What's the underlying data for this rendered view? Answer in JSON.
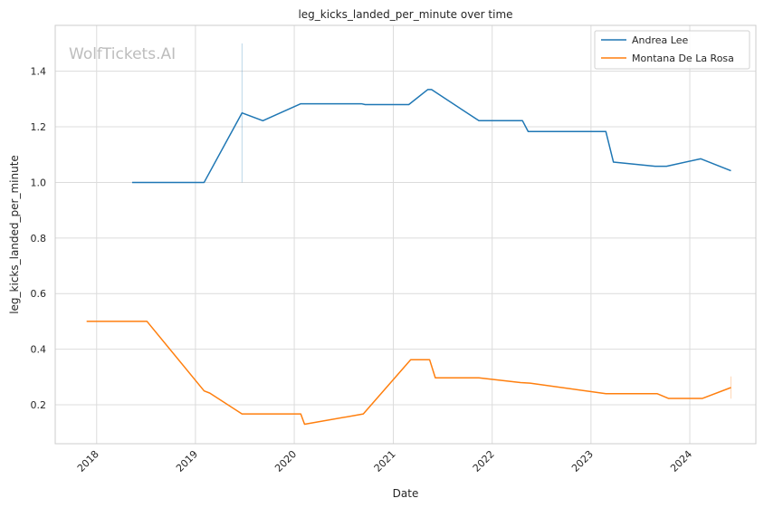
{
  "chart_data": {
    "type": "line",
    "title": "leg_kicks_landed_per_minute over time",
    "xlabel": "Date",
    "ylabel": "leg_kicks_landed_per_minute",
    "watermark": "WolfTickets.AI",
    "x_axis_kind": "date",
    "xlim": [
      "2017-08-01",
      "2024-09-01"
    ],
    "ylim": [
      0.06,
      1.565
    ],
    "x_ticks": [
      "2018",
      "2019",
      "2020",
      "2021",
      "2022",
      "2023",
      "2024"
    ],
    "y_ticks": [
      "0.2",
      "0.4",
      "0.6",
      "0.8",
      "1.0",
      "1.2",
      "1.4"
    ],
    "grid": true,
    "legend_position": "top-right",
    "series": [
      {
        "name": "Andrea Lee",
        "color": "#1f77b4",
        "points": [
          {
            "x": "2018-05-12",
            "y": 1.0
          },
          {
            "x": "2019-02-02",
            "y": 1.0
          },
          {
            "x": "2019-06-22",
            "y": 1.25
          },
          {
            "x": "2019-09-07",
            "y": 1.222
          },
          {
            "x": "2020-01-25",
            "y": 1.283
          },
          {
            "x": "2020-09-05",
            "y": 1.283
          },
          {
            "x": "2020-09-19",
            "y": 1.28
          },
          {
            "x": "2021-02-27",
            "y": 1.28
          },
          {
            "x": "2021-05-08",
            "y": 1.334
          },
          {
            "x": "2021-05-22",
            "y": 1.334
          },
          {
            "x": "2021-11-13",
            "y": 1.222
          },
          {
            "x": "2022-04-23",
            "y": 1.222
          },
          {
            "x": "2022-05-14",
            "y": 1.183
          },
          {
            "x": "2023-02-25",
            "y": 1.183
          },
          {
            "x": "2023-03-25",
            "y": 1.073
          },
          {
            "x": "2023-08-26",
            "y": 1.058
          },
          {
            "x": "2023-10-07",
            "y": 1.058
          },
          {
            "x": "2024-02-10",
            "y": 1.085
          },
          {
            "x": "2024-06-01",
            "y": 1.042
          }
        ]
      },
      {
        "name": "Montana De La Rosa",
        "color": "#ff7f0e",
        "points": [
          {
            "x": "2017-11-25",
            "y": 0.5
          },
          {
            "x": "2018-07-06",
            "y": 0.5
          },
          {
            "x": "2019-02-02",
            "y": 0.25
          },
          {
            "x": "2019-02-23",
            "y": 0.242
          },
          {
            "x": "2019-06-22",
            "y": 0.167
          },
          {
            "x": "2020-01-25",
            "y": 0.167
          },
          {
            "x": "2020-02-08",
            "y": 0.13
          },
          {
            "x": "2020-09-12",
            "y": 0.167
          },
          {
            "x": "2021-03-06",
            "y": 0.362
          },
          {
            "x": "2021-05-15",
            "y": 0.362
          },
          {
            "x": "2021-06-05",
            "y": 0.297
          },
          {
            "x": "2021-11-13",
            "y": 0.297
          },
          {
            "x": "2022-04-16",
            "y": 0.28
          },
          {
            "x": "2022-05-21",
            "y": 0.278
          },
          {
            "x": "2023-02-25",
            "y": 0.24
          },
          {
            "x": "2023-09-02",
            "y": 0.24
          },
          {
            "x": "2023-10-14",
            "y": 0.223
          },
          {
            "x": "2024-02-17",
            "y": 0.223
          },
          {
            "x": "2024-06-01",
            "y": 0.262
          }
        ]
      }
    ]
  }
}
